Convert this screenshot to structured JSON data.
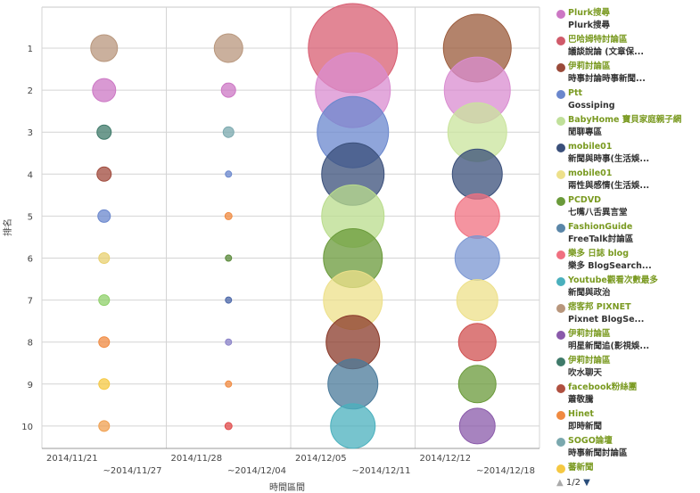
{
  "chart_data": {
    "type": "scatter",
    "xlabel": "時間區間",
    "ylabel": "排名",
    "y_ticks": [
      "1",
      "2",
      "3",
      "4",
      "5",
      "6",
      "7",
      "8",
      "9",
      "10"
    ],
    "x_categories": [
      {
        "line1": "2014/11/21",
        "line2": "~2014/11/27"
      },
      {
        "line1": "2014/11/28",
        "line2": "~2014/12/04"
      },
      {
        "line1": "2014/12/05",
        "line2": "~2014/12/11"
      },
      {
        "line1": "2014/12/12",
        "line2": "~2014/12/18"
      }
    ],
    "bubbles": [
      {
        "x": 0,
        "rank": 1,
        "size": 15,
        "color": "#b8967c"
      },
      {
        "x": 0,
        "rank": 2,
        "size": 13,
        "color": "#cc77c4"
      },
      {
        "x": 0,
        "rank": 3,
        "size": 8,
        "color": "#3f7a6a"
      },
      {
        "x": 0,
        "rank": 4,
        "size": 8,
        "color": "#a04a3c"
      },
      {
        "x": 0,
        "rank": 5,
        "size": 7,
        "color": "#6a87cd"
      },
      {
        "x": 0,
        "rank": 6,
        "size": 6,
        "color": "#e8d070"
      },
      {
        "x": 0,
        "rank": 7,
        "size": 6,
        "color": "#8fd06a"
      },
      {
        "x": 0,
        "rank": 8,
        "size": 6,
        "color": "#f08a40"
      },
      {
        "x": 0,
        "rank": 9,
        "size": 6,
        "color": "#f5c842"
      },
      {
        "x": 0,
        "rank": 10,
        "size": 6,
        "color": "#f0a050"
      },
      {
        "x": 1,
        "rank": 1,
        "size": 16,
        "color": "#b8967c"
      },
      {
        "x": 1,
        "rank": 2,
        "size": 8,
        "color": "#cc77c4"
      },
      {
        "x": 1,
        "rank": 3,
        "size": 6,
        "color": "#7aa8ae"
      },
      {
        "x": 1,
        "rank": 4,
        "size": 3.5,
        "color": "#6a87cd"
      },
      {
        "x": 1,
        "rank": 5,
        "size": 4,
        "color": "#f08a40"
      },
      {
        "x": 1,
        "rank": 6,
        "size": 3.5,
        "color": "#5a8a3a"
      },
      {
        "x": 1,
        "rank": 7,
        "size": 3.5,
        "color": "#4a66a8"
      },
      {
        "x": 1,
        "rank": 8,
        "size": 3.5,
        "color": "#8a82c8"
      },
      {
        "x": 1,
        "rank": 9,
        "size": 3.5,
        "color": "#f08a40"
      },
      {
        "x": 1,
        "rank": 10,
        "size": 4,
        "color": "#e04a4a"
      },
      {
        "x": 2,
        "rank": 1,
        "size": 50,
        "color": "#d85e72"
      },
      {
        "x": 2,
        "rank": 2,
        "size": 42,
        "color": "#d98cd0"
      },
      {
        "x": 2,
        "rank": 3,
        "size": 40,
        "color": "#6a87cd"
      },
      {
        "x": 2,
        "rank": 4,
        "size": 35,
        "color": "#3a4f7a"
      },
      {
        "x": 2,
        "rank": 5,
        "size": 35,
        "color": "#b9dc8c"
      },
      {
        "x": 2,
        "rank": 6,
        "size": 33,
        "color": "#6a9a3a"
      },
      {
        "x": 2,
        "rank": 7,
        "size": 33,
        "color": "#ede08a"
      },
      {
        "x": 2,
        "rank": 8,
        "size": 30,
        "color": "#8a3a2a"
      },
      {
        "x": 2,
        "rank": 9,
        "size": 28,
        "color": "#4a7a9a"
      },
      {
        "x": 2,
        "rank": 10,
        "size": 25,
        "color": "#4ab0bd"
      },
      {
        "x": 3,
        "rank": 1,
        "size": 38,
        "color": "#9a5a3a"
      },
      {
        "x": 3,
        "rank": 2,
        "size": 37,
        "color": "#d98cd0"
      },
      {
        "x": 3,
        "rank": 3,
        "size": 33,
        "color": "#c9e49c"
      },
      {
        "x": 3,
        "rank": 4,
        "size": 28,
        "color": "#3a4f7a"
      },
      {
        "x": 3,
        "rank": 5,
        "size": 25,
        "color": "#f07080"
      },
      {
        "x": 3,
        "rank": 6,
        "size": 25,
        "color": "#7a96d2"
      },
      {
        "x": 3,
        "rank": 7,
        "size": 23,
        "color": "#ede08a"
      },
      {
        "x": 3,
        "rank": 8,
        "size": 21,
        "color": "#d05050"
      },
      {
        "x": 3,
        "rank": 9,
        "size": 21,
        "color": "#6a9a3a"
      },
      {
        "x": 3,
        "rank": 10,
        "size": 20,
        "color": "#8a5aaa"
      }
    ]
  },
  "legend": [
    {
      "name": "Plurk搜尋",
      "board": "Plurk搜尋",
      "color": "#cc77c4"
    },
    {
      "name": "巴哈姆特討論區",
      "board": "議談說論 (文章保...",
      "color": "#d05a6a"
    },
    {
      "name": "伊莉討論區",
      "board": "時事討論時事新聞...",
      "color": "#9a4a3a"
    },
    {
      "name": "Ptt",
      "board": "Gossiping",
      "color": "#6a87cd"
    },
    {
      "name": "BabyHome 寶貝家庭親子網",
      "board": "閒聊專區",
      "color": "#c0e09a"
    },
    {
      "name": "mobile01",
      "board": "新聞與時事(生活娛...",
      "color": "#3a4f7a"
    },
    {
      "name": "mobile01",
      "board": "兩性與感情(生活娛...",
      "color": "#ede08a"
    },
    {
      "name": "PCDVD",
      "board": "七嘴八舌異言堂",
      "color": "#6a9a3a"
    },
    {
      "name": "FashionGuide",
      "board": "FreeTalk討論區",
      "color": "#5a86a8"
    },
    {
      "name": "樂多 日誌 blog",
      "board": "樂多 BlogSearch...",
      "color": "#f07080"
    },
    {
      "name": "Youtube觀看次數最多",
      "board": "新聞與政治",
      "color": "#4ab0bd"
    },
    {
      "name": "痞客邦 PIXNET",
      "board": "Pixnet BlogSe...",
      "color": "#b8967c"
    },
    {
      "name": "伊莉討論區",
      "board": "明星新聞追(影視娛...",
      "color": "#8a5aaa"
    },
    {
      "name": "伊莉討論區",
      "board": "吹水聊天",
      "color": "#3f7a6a"
    },
    {
      "name": "facebook粉絲團",
      "board": "蕭敬騰",
      "color": "#b05040"
    },
    {
      "name": "Hinet",
      "board": "即時新聞",
      "color": "#f08a40"
    },
    {
      "name": "SOGO論壇",
      "board": "時事新聞討論區",
      "color": "#7aa8ae"
    },
    {
      "name": "蕃新聞",
      "board": "",
      "color": "#f5c842"
    }
  ],
  "pager": {
    "up": "▲",
    "text": "1/2",
    "down": "▼"
  }
}
